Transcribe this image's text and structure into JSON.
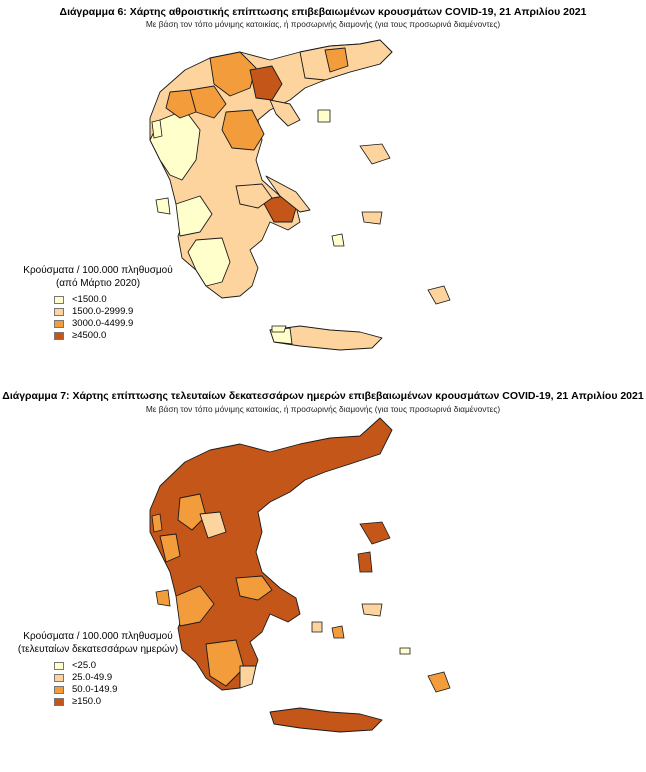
{
  "colors": {
    "c6_lt1500": "#ffffcc",
    "c6_1500": "#fdd49e",
    "c6_3000": "#f39c3c",
    "c6_4500": "#c4561a",
    "c7_lt25": "#ffffcc",
    "c7_25": "#fdd49e",
    "c7_50": "#f39c3c",
    "c7_150": "#c4561a"
  },
  "map6": {
    "title": "Διάγραμμα 6: Χάρτης αθροιστικής επίπτωσης επιβεβαιωμένων κρουσμάτων COVID-19, 21 Απριλίου 2021",
    "subtitle": "Με βάση τον τόπο μόνιμης κατοικίας, ή προσωρινής διαμονής (για τους προσωρινά διαμένοντες)",
    "legend": {
      "title_line1": "Κρούσματα / 100.000 πληθυσμού",
      "title_line2": "(από Μάρτιο 2020)",
      "items": [
        {
          "label": "<1500.0",
          "color": "#ffffcc"
        },
        {
          "label": "1500.0-2999.9",
          "color": "#fdd49e"
        },
        {
          "label": "3000.0-4499.9",
          "color": "#f39c3c"
        },
        {
          "label": "≥4500.0",
          "color": "#c4561a"
        }
      ]
    }
  },
  "map7": {
    "title": "Διάγραμμα 7: Χάρτης επίπτωσης τελευταίων δεκατεσσάρων ημερών επιβεβαιωμένων κρουσμάτων COVID-19, 21 Απριλίου 2021",
    "subtitle": "Με βάση τον τόπο μόνιμης κατοικίας, ή προσωρινής διαμονής (για τους προσωρινά διαμένοντες)",
    "legend": {
      "title_line1": "Κρούσματα / 100.000 πληθυσμού",
      "title_line2": "(τελευταίων δεκατεσσάρων ημερών)",
      "items": [
        {
          "label": "<25.0",
          "color": "#ffffcc"
        },
        {
          "label": "25.0-49.9",
          "color": "#fdd49e"
        },
        {
          "label": "50.0-149.9",
          "color": "#f39c3c"
        },
        {
          "label": "≥150.0",
          "color": "#c4561a"
        }
      ]
    }
  }
}
